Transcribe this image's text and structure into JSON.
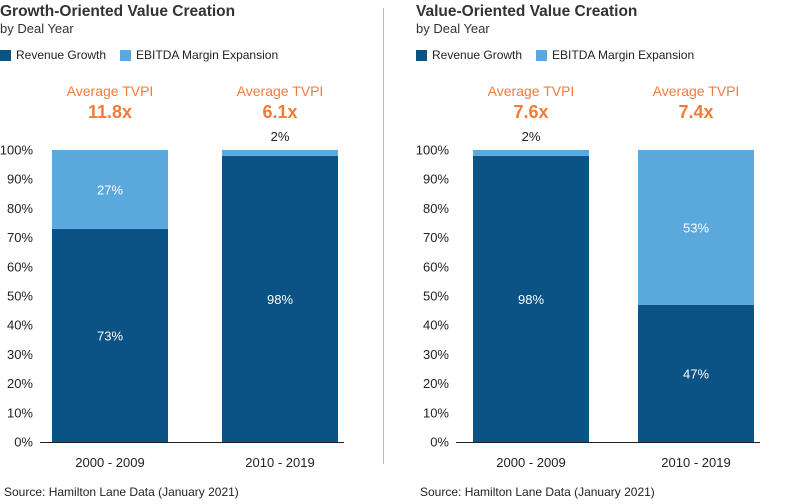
{
  "colors": {
    "revenue": "#0b5285",
    "ebitda": "#5ba8dc",
    "accent": "#f07c3c",
    "axis": "#222222"
  },
  "source_note": "Source: Hamilton Lane Data (January 2021)",
  "chart_data": [
    {
      "type": "bar",
      "stacked": true,
      "title": "Growth-Oriented Value Creation",
      "subtitle": "by Deal Year",
      "categories": [
        "2000 - 2009",
        "2010 - 2019"
      ],
      "series": [
        {
          "name": "Revenue Growth",
          "values": [
            73,
            98
          ],
          "labels": [
            "73%",
            "98%"
          ]
        },
        {
          "name": "EBITDA Margin Expansion",
          "values": [
            27,
            2
          ],
          "labels": [
            "27%",
            "2%"
          ]
        }
      ],
      "header_label": "Average TVPI",
      "tvpi": [
        "11.8x",
        "6.1x"
      ],
      "ylim": [
        0,
        100
      ],
      "yticks": [
        "0%",
        "10%",
        "20%",
        "30%",
        "40%",
        "50%",
        "60%",
        "70%",
        "80%",
        "90%",
        "100%"
      ],
      "legend": "top-left"
    },
    {
      "type": "bar",
      "stacked": true,
      "title": "Value-Oriented Value Creation",
      "subtitle": "by Deal Year",
      "categories": [
        "2000 - 2009",
        "2010 - 2019"
      ],
      "series": [
        {
          "name": "Revenue Growth",
          "values": [
            98,
            47
          ],
          "labels": [
            "98%",
            "47%"
          ]
        },
        {
          "name": "EBITDA Margin Expansion",
          "values": [
            2,
            53
          ],
          "labels": [
            "2%",
            "53%"
          ]
        }
      ],
      "header_label": "Average TVPI",
      "tvpi": [
        "7.6x",
        "7.4x"
      ],
      "ylim": [
        0,
        100
      ],
      "yticks": [
        "0%",
        "10%",
        "20%",
        "30%",
        "40%",
        "50%",
        "60%",
        "70%",
        "80%",
        "90%",
        "100%"
      ],
      "legend": "top-left"
    }
  ]
}
